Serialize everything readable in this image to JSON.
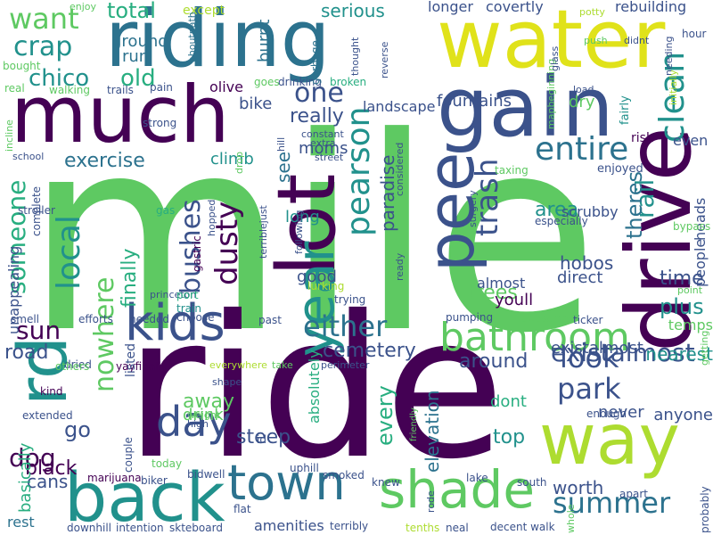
{
  "palette": {
    "dark_purple": "#440154",
    "indigo": "#3b528b",
    "teal_blue": "#2c728e",
    "teal": "#21918c",
    "green_teal": "#28ae80",
    "green": "#5ec962",
    "lime": "#addc30",
    "yellow": "#fde725"
  },
  "words": [
    {
      "text": "mile",
      "color": "#5ec962"
    },
    {
      "text": "ride",
      "color": "#440154"
    },
    {
      "text": "riding",
      "color": "#2c728e"
    },
    {
      "text": "water",
      "color": "#e0e21a"
    },
    {
      "text": "much",
      "color": "#440154"
    },
    {
      "text": "gain",
      "color": "#3b528b"
    },
    {
      "text": "lot",
      "color": "#440154"
    },
    {
      "text": "drive",
      "color": "#440154"
    },
    {
      "text": "pee",
      "color": "#3b528b"
    },
    {
      "text": "way",
      "color": "#addc30"
    },
    {
      "text": "rd",
      "color": "#21918c"
    },
    {
      "text": "back",
      "color": "#21918c"
    },
    {
      "text": "town",
      "color": "#2c728e"
    },
    {
      "text": "shade",
      "color": "#5ec962"
    },
    {
      "text": "kids",
      "color": "#3b528b"
    },
    {
      "text": "bathroom",
      "color": "#5ec962"
    },
    {
      "text": "year",
      "color": "#21918c"
    },
    {
      "text": "day",
      "color": "#3b528b"
    },
    {
      "text": "summer",
      "color": "#2c728e"
    },
    {
      "text": "park",
      "color": "#3b528b"
    },
    {
      "text": "look",
      "color": "#3b528b"
    },
    {
      "text": "existalmost",
      "color": "#3b528b"
    },
    {
      "text": "clean",
      "color": "#21918c"
    },
    {
      "text": "rail",
      "color": "#21918c"
    },
    {
      "text": "entire",
      "color": "#2c728e"
    },
    {
      "text": "trash",
      "color": "#3b528b"
    },
    {
      "text": "pearson",
      "color": "#21918c"
    },
    {
      "text": "someone",
      "color": "#28ae80"
    },
    {
      "text": "local",
      "color": "#21918c"
    },
    {
      "text": "bushes",
      "color": "#3b528b"
    },
    {
      "text": "dusty",
      "color": "#440154"
    },
    {
      "text": "either",
      "color": "#2c728e"
    },
    {
      "text": "one",
      "color": "#3b528b"
    },
    {
      "text": "crap",
      "color": "#21918c"
    },
    {
      "text": "want",
      "color": "#5ec962"
    },
    {
      "text": "chico",
      "color": "#21918c"
    },
    {
      "text": "old",
      "color": "#28ae80"
    },
    {
      "text": "total",
      "color": "#28ae80"
    },
    {
      "text": "ground",
      "color": "#2c728e"
    },
    {
      "text": "run",
      "color": "#2c728e"
    },
    {
      "text": "exercise",
      "color": "#2c728e"
    },
    {
      "text": "sun",
      "color": "#440154"
    },
    {
      "text": "nowhere",
      "color": "#5ec962"
    },
    {
      "text": "finally",
      "color": "#28ae80"
    },
    {
      "text": "road",
      "color": "#3b528b"
    },
    {
      "text": "go",
      "color": "#3b528b"
    },
    {
      "text": "dog",
      "color": "#440154"
    },
    {
      "text": "black",
      "color": "#440154"
    },
    {
      "text": "cans",
      "color": "#3b528b"
    },
    {
      "text": "rest",
      "color": "#2c728e"
    },
    {
      "text": "basically",
      "color": "#28ae80"
    },
    {
      "text": "unappealing",
      "color": "#3b528b"
    },
    {
      "text": "cemetery",
      "color": "#3b528b"
    },
    {
      "text": "around",
      "color": "#3b528b"
    },
    {
      "text": "away",
      "color": "#5ec962"
    },
    {
      "text": "steep",
      "color": "#3b528b"
    },
    {
      "text": "drink",
      "color": "#5ec962"
    },
    {
      "text": "every",
      "color": "#28ae80"
    },
    {
      "text": "elevation",
      "color": "#2c728e"
    },
    {
      "text": "top",
      "color": "#21918c"
    },
    {
      "text": "dont",
      "color": "#28ae80"
    },
    {
      "text": "worth",
      "color": "#3b528b"
    },
    {
      "text": "never",
      "color": "#3b528b"
    },
    {
      "text": "anyone",
      "color": "#3b528b"
    },
    {
      "text": "nearest",
      "color": "#21918c"
    },
    {
      "text": "plus",
      "color": "#21918c"
    },
    {
      "text": "time",
      "color": "#3b528b"
    },
    {
      "text": "theres",
      "color": "#2c728e"
    },
    {
      "text": "hobos",
      "color": "#3b528b"
    },
    {
      "text": "area",
      "color": "#21918c"
    },
    {
      "text": "trees",
      "color": "#5ec962"
    },
    {
      "text": "almost",
      "color": "#3b528b"
    },
    {
      "text": "youll",
      "color": "#440154"
    },
    {
      "text": "direct",
      "color": "#3b528b"
    },
    {
      "text": "paradise",
      "color": "#3b528b"
    },
    {
      "text": "fountains",
      "color": "#3b528b"
    },
    {
      "text": "landscape",
      "color": "#3b528b"
    },
    {
      "text": "dry",
      "color": "#5ec962"
    },
    {
      "text": "serious",
      "color": "#21918c"
    },
    {
      "text": "longer",
      "color": "#3b528b"
    },
    {
      "text": "covertly",
      "color": "#3b528b"
    },
    {
      "text": "rebuilding",
      "color": "#3b528b"
    },
    {
      "text": "except",
      "color": "#addc30"
    },
    {
      "text": "really",
      "color": "#3b528b"
    },
    {
      "text": "climb",
      "color": "#21918c"
    },
    {
      "text": "bike",
      "color": "#3b528b"
    },
    {
      "text": "olive",
      "color": "#440154"
    },
    {
      "text": "moms",
      "color": "#3b528b"
    },
    {
      "text": "see",
      "color": "#2c728e"
    },
    {
      "text": "long",
      "color": "#21918c"
    },
    {
      "text": "good",
      "color": "#3b528b"
    },
    {
      "text": "absolutely",
      "color": "#28ae80"
    },
    {
      "text": "amenities",
      "color": "#3b528b"
    },
    {
      "text": "burnt",
      "color": "#2c728e"
    },
    {
      "text": "heads",
      "color": "#3b528b"
    },
    {
      "text": "people",
      "color": "#3b528b"
    },
    {
      "text": "temps",
      "color": "#5ec962"
    },
    {
      "text": "even",
      "color": "#3b528b"
    },
    {
      "text": "risk",
      "color": "#440154"
    },
    {
      "text": "enjoyed",
      "color": "#3b528b"
    },
    {
      "text": "scrubby",
      "color": "#3b528b"
    },
    {
      "text": "especially",
      "color": "#3b528b"
    },
    {
      "text": "fairly",
      "color": "#21918c"
    },
    {
      "text": "existalmost",
      "color": "#3b528b"
    },
    {
      "text": "mapbeginning",
      "color": "#5ec962"
    },
    {
      "text": "load",
      "color": "#3b528b"
    },
    {
      "text": "glass",
      "color": "#3b528b"
    },
    {
      "text": "push",
      "color": "#5ec962"
    },
    {
      "text": "potty",
      "color": "#addc30"
    },
    {
      "text": "hour",
      "color": "#3b528b"
    },
    {
      "text": "needing",
      "color": "#3b528b"
    },
    {
      "text": "didnt",
      "color": "#3b528b"
    },
    {
      "text": "initially",
      "color": "#addc30"
    },
    {
      "text": "strong",
      "color": "#3b528b"
    },
    {
      "text": "pain",
      "color": "#3b528b"
    },
    {
      "text": "trails",
      "color": "#3b528b"
    },
    {
      "text": "walking",
      "color": "#5ec962"
    },
    {
      "text": "real",
      "color": "#5ec962"
    },
    {
      "text": "bought",
      "color": "#5ec962"
    },
    {
      "text": "enjoy",
      "color": "#5ec962"
    },
    {
      "text": "aboutpath",
      "color": "#2c728e"
    },
    {
      "text": "goes",
      "color": "#5ec962"
    },
    {
      "text": "drinking",
      "color": "#3b528b"
    },
    {
      "text": "broken",
      "color": "#28ae80"
    },
    {
      "text": "garbage",
      "color": "#2c728e"
    },
    {
      "text": "thought",
      "color": "#3b528b"
    },
    {
      "text": "reverse",
      "color": "#3b528b"
    },
    {
      "text": "incline",
      "color": "#5ec962"
    },
    {
      "text": "school",
      "color": "#3b528b"
    },
    {
      "text": "stroller",
      "color": "#3b528b"
    },
    {
      "text": "complete",
      "color": "#3b528b"
    },
    {
      "text": "gas",
      "color": "#28ae80"
    },
    {
      "text": "gastric",
      "color": "#440154"
    },
    {
      "text": "princeton",
      "color": "#3b528b"
    },
    {
      "text": "port",
      "color": "#28ae80"
    },
    {
      "text": "train",
      "color": "#21918c"
    },
    {
      "text": "choose",
      "color": "#3b528b"
    },
    {
      "text": "needed",
      "color": "#3b528b"
    },
    {
      "text": "efforts",
      "color": "#3b528b"
    },
    {
      "text": "smell",
      "color": "#3b528b"
    },
    {
      "text": "drop",
      "color": "#5ec962"
    },
    {
      "text": "hill",
      "color": "#3b528b"
    },
    {
      "text": "constant",
      "color": "#3b528b"
    },
    {
      "text": "extra",
      "color": "#3b528b"
    },
    {
      "text": "street",
      "color": "#3b528b"
    },
    {
      "text": "considered",
      "color": "#3b528b"
    },
    {
      "text": "following",
      "color": "#3b528b"
    },
    {
      "text": "terriblejust",
      "color": "#3b528b"
    },
    {
      "text": "hopped",
      "color": "#3b528b"
    },
    {
      "text": "surgery",
      "color": "#3b528b"
    },
    {
      "text": "lurking",
      "color": "#addc30"
    },
    {
      "text": "trying",
      "color": "#3b528b"
    },
    {
      "text": "ready",
      "color": "#3b528b"
    },
    {
      "text": "pumping",
      "color": "#3b528b"
    },
    {
      "text": "awesome",
      "color": "#5ec962"
    },
    {
      "text": "ticker",
      "color": "#3b528b"
    },
    {
      "text": "point",
      "color": "#5ec962"
    },
    {
      "text": "bypass",
      "color": "#5ec962"
    },
    {
      "text": "taxing",
      "color": "#5ec962"
    },
    {
      "text": "past",
      "color": "#3b528b"
    },
    {
      "text": "everywhere",
      "color": "#addc30"
    },
    {
      "text": "take",
      "color": "#5ec962"
    },
    {
      "text": "perimeter",
      "color": "#3b528b"
    },
    {
      "text": "yayfinally",
      "color": "#440154"
    },
    {
      "text": "listed",
      "color": "#3b528b"
    },
    {
      "text": "shape",
      "color": "#3b528b"
    },
    {
      "text": "weight",
      "color": "#5ec962"
    },
    {
      "text": "high",
      "color": "#3b528b"
    },
    {
      "text": "kind",
      "color": "#440154"
    },
    {
      "text": "extended",
      "color": "#3b528b"
    },
    {
      "text": "dried",
      "color": "#3b528b"
    },
    {
      "text": "others",
      "color": "#5ec962"
    },
    {
      "text": "couple",
      "color": "#3b528b"
    },
    {
      "text": "marijuana",
      "color": "#440154"
    },
    {
      "text": "biker",
      "color": "#3b528b"
    },
    {
      "text": "today",
      "color": "#5ec962"
    },
    {
      "text": "bidwell",
      "color": "#3b528b"
    },
    {
      "text": "id",
      "color": "#3b528b"
    },
    {
      "text": "uphill",
      "color": "#3b528b"
    },
    {
      "text": "smoked",
      "color": "#3b528b"
    },
    {
      "text": "knew",
      "color": "#3b528b"
    },
    {
      "text": "friendly",
      "color": "#5ec962"
    },
    {
      "text": "lake",
      "color": "#3b528b"
    },
    {
      "text": "south",
      "color": "#3b528b"
    },
    {
      "text": "decent walk",
      "color": "#3b528b"
    },
    {
      "text": "apart",
      "color": "#3b528b"
    },
    {
      "text": "enough",
      "color": "#3b528b"
    },
    {
      "text": "whole",
      "color": "#5ec962"
    },
    {
      "text": "probably",
      "color": "#3b528b"
    },
    {
      "text": "getting",
      "color": "#5ec962"
    },
    {
      "text": "flat",
      "color": "#3b528b"
    },
    {
      "text": "skteboard",
      "color": "#3b528b"
    },
    {
      "text": "intention",
      "color": "#3b528b"
    },
    {
      "text": "downhill",
      "color": "#3b528b"
    },
    {
      "text": "terribly",
      "color": "#3b528b"
    },
    {
      "text": "neal",
      "color": "#3b528b"
    },
    {
      "text": "tenths",
      "color": "#addc30"
    },
    {
      "text": "rode",
      "color": "#3b528b"
    }
  ]
}
